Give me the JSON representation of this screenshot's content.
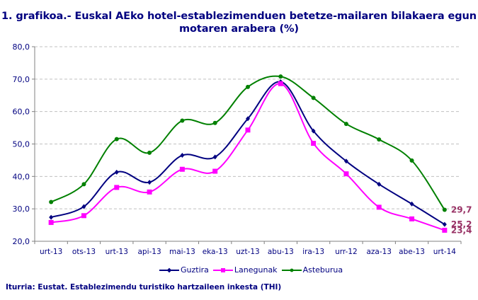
{
  "title": {
    "line1": "1. grafikoa.- Euskal AEko hotel-establezimenduen betetze-mailaren bilakaera egun",
    "line2": "motaren arabera (%)"
  },
  "source": "Iturria: Eustat. Establezimendu turistiko hartzaileen inkesta (THI)",
  "legend": [
    {
      "label": "Guztira",
      "color": "#000080",
      "marker": "diamond"
    },
    {
      "label": "Lanegunak",
      "color": "#FF00FF",
      "marker": "square"
    },
    {
      "label": "Asteburua",
      "color": "#008000",
      "marker": "circle"
    }
  ],
  "end_labels": [
    "29,7",
    "25,2",
    "23,4"
  ],
  "chart_data": {
    "type": "line",
    "title": "1. grafikoa.- Euskal AEko hotel-establezimenduen betetze-mailaren bilakaera egun motaren arabera (%)",
    "xlabel": "",
    "ylabel": "",
    "ylim": [
      20,
      80
    ],
    "yticks": [
      "20,0",
      "30,0",
      "40,0",
      "50,0",
      "60,0",
      "70,0",
      "80,0"
    ],
    "grid": true,
    "legend_position": "bottom",
    "categories": [
      "urt-13",
      "ots-13",
      "urt-13",
      "api-13",
      "mai-13",
      "eka-13",
      "uzt-13",
      "abu-13",
      "ira-13",
      "urr-12",
      "aza-13",
      "abe-13",
      "urt-14"
    ],
    "series": [
      {
        "name": "Guztira",
        "color": "#000080",
        "values": [
          27.4,
          30.7,
          41.3,
          38.2,
          46.5,
          46.0,
          57.8,
          69.2,
          54.0,
          44.7,
          37.6,
          31.5,
          25.2
        ]
      },
      {
        "name": "Lanegunak",
        "color": "#FF00FF",
        "values": [
          25.8,
          27.9,
          36.6,
          35.2,
          42.2,
          41.6,
          54.3,
          68.6,
          50.2,
          40.8,
          30.5,
          26.9,
          23.4
        ]
      },
      {
        "name": "Asteburua",
        "color": "#008000",
        "values": [
          32.1,
          37.6,
          51.5,
          47.3,
          57.2,
          56.5,
          67.6,
          70.8,
          64.2,
          56.2,
          51.4,
          44.9,
          29.7
        ]
      }
    ],
    "annotations": [
      {
        "series": "Asteburua",
        "text": "29,7"
      },
      {
        "series": "Guztira",
        "text": "25,2"
      },
      {
        "series": "Lanegunak",
        "text": "23,4"
      }
    ]
  }
}
